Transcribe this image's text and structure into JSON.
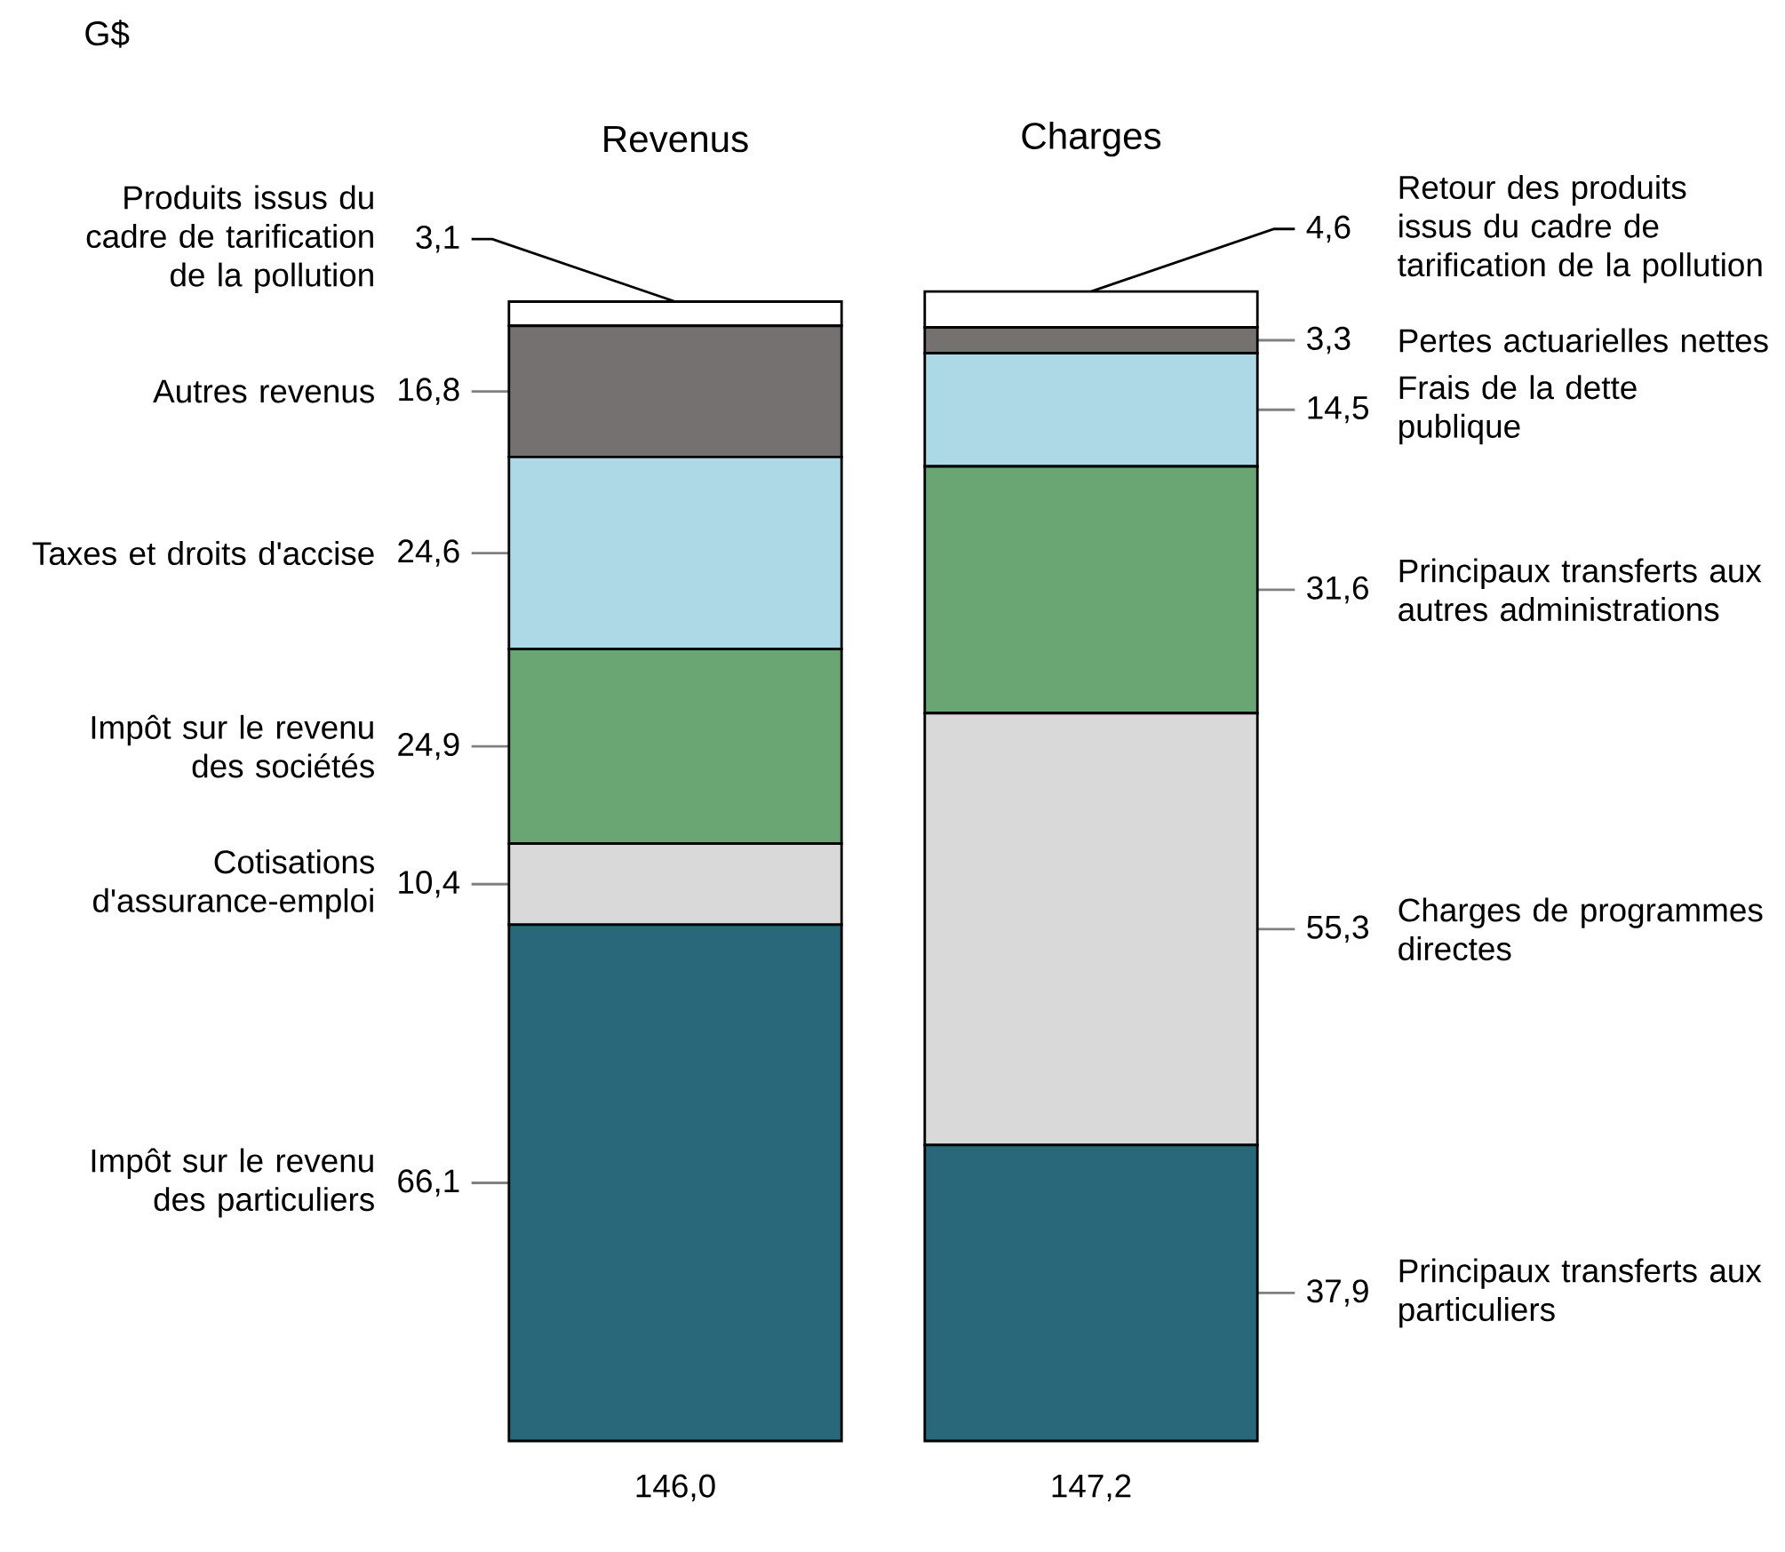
{
  "chart_data": {
    "type": "bar",
    "stacked": true,
    "categories": [
      "Revenus",
      "Charges"
    ],
    "series": [
      {
        "color": "#28687a",
        "values": [
          66.1,
          37.9
        ],
        "value_labels": [
          "66,1",
          "37,9"
        ]
      },
      {
        "color": "#d9d9d9",
        "values": [
          10.4,
          55.3
        ],
        "value_labels": [
          "10,4",
          "55,3"
        ]
      },
      {
        "color": "#6aa574",
        "values": [
          24.9,
          31.6
        ],
        "value_labels": [
          "24,9",
          "31,6"
        ]
      },
      {
        "color": "#add8e6",
        "values": [
          24.6,
          14.5
        ],
        "value_labels": [
          "24,6",
          "14,5"
        ]
      },
      {
        "color": "#767171",
        "values": [
          16.8,
          3.3
        ],
        "value_labels": [
          "16,8",
          "3,3"
        ]
      },
      {
        "color": "#ffffff",
        "values": [
          3.1,
          4.6
        ],
        "value_labels": [
          "3,1",
          "4,6"
        ]
      }
    ],
    "totals": [
      "146,0",
      "147,2"
    ],
    "annotations": [
      "Impôt sur le revenu des particuliers",
      "Cotisations d'assurance-emploi",
      "Impôt sur le revenu des sociétés",
      "Taxes et droits d'accise",
      "Autres revenus",
      "Produits issus du cadre de tarification de la pollution",
      "Principaux transferts aux particuliers",
      "Charges de programmes directes",
      "Principaux transferts aux autres administrations",
      "Frais de la dette publique",
      "Pertes actuarielles nettes",
      "Retour des produits issus du cadre de tarification de la pollution",
      "G$"
    ]
  }
}
